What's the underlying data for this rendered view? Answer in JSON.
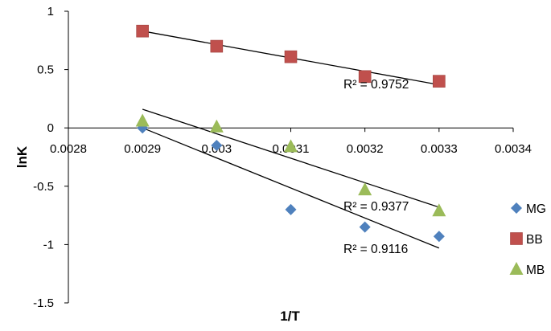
{
  "chart_data": {
    "type": "scatter",
    "xlabel": "1/T",
    "ylabel": "lnK",
    "xlim": [
      0.0028,
      0.0034
    ],
    "ylim": [
      -1.5,
      1
    ],
    "x_ticks": [
      "0.0028",
      "0.0029",
      "0.003",
      "0.0031",
      "0.0032",
      "0.0033",
      "0.0034"
    ],
    "y_ticks": [
      "1",
      "0.5",
      "0",
      "-0.5",
      "-1",
      "-1.5"
    ],
    "grid": false,
    "legend_position": "right",
    "series": [
      {
        "name": "MG",
        "marker": "diamond",
        "color": "#4F81BD",
        "points": [
          [
            0.0029,
            0.0
          ],
          [
            0.003,
            -0.15
          ],
          [
            0.0031,
            -0.7
          ],
          [
            0.0032,
            -0.85
          ],
          [
            0.0033,
            -0.93
          ]
        ],
        "trendline": {
          "x": [
            0.0029,
            0.0033
          ],
          "y": [
            0.0,
            -1.03
          ]
        },
        "r2_label": "R² = 0.9116"
      },
      {
        "name": "BB",
        "marker": "square",
        "color": "#C0504D",
        "points": [
          [
            0.0029,
            0.83
          ],
          [
            0.003,
            0.7
          ],
          [
            0.0031,
            0.61
          ],
          [
            0.0032,
            0.44
          ],
          [
            0.0033,
            0.4
          ]
        ],
        "trendline": {
          "x": [
            0.0029,
            0.0033
          ],
          "y": [
            0.83,
            0.37
          ]
        },
        "r2_label": "R² = 0.9752"
      },
      {
        "name": "MB",
        "marker": "triangle",
        "color": "#9BBB59",
        "points": [
          [
            0.0029,
            0.06
          ],
          [
            0.003,
            0.01
          ],
          [
            0.0031,
            -0.16
          ],
          [
            0.0032,
            -0.53
          ],
          [
            0.0033,
            -0.71
          ]
        ],
        "trendline": {
          "x": [
            0.0029,
            0.0033
          ],
          "y": [
            0.16,
            -0.68
          ]
        },
        "r2_label": "R² = 0.9377"
      }
    ]
  }
}
